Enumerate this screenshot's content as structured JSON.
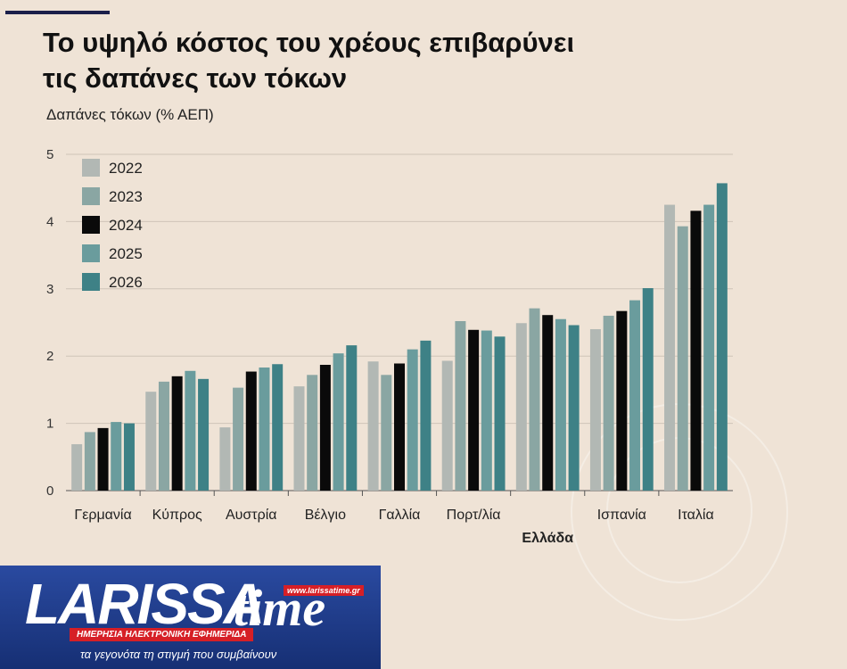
{
  "title_line1": "Το υψηλό κόστος του χρέους επιβαρύνει",
  "title_line2": "τις δαπάνες των τόκων",
  "colors": {
    "2022": "#b2b8b4",
    "2023": "#8aa6a3",
    "2024": "#0a0a0a",
    "2025": "#6a9c9d",
    "2026": "#3e8186",
    "background": "#efe3d6",
    "grid": "#cfc4b8"
  },
  "chart_data": {
    "type": "bar",
    "ylabel": "Δαπάνες τόκων (% ΑΕΠ)",
    "ylim": [
      0,
      5
    ],
    "yticks": [
      "0",
      "1",
      "2",
      "3",
      "4",
      "5"
    ],
    "legend_placement": "top-left",
    "categories": [
      "Γερμανία",
      "Κύπρος",
      "Αυστρία",
      "Βέλγιο",
      "Γαλλία",
      "Πορτ/λία",
      "Ελλάδα",
      "Ισπανία",
      "Ιταλία"
    ],
    "highlighted_category": "Ελλάδα",
    "series": [
      {
        "name": "2022",
        "values": [
          0.69,
          1.47,
          0.94,
          1.55,
          1.92,
          1.93,
          2.49,
          2.4,
          4.25
        ]
      },
      {
        "name": "2023",
        "values": [
          0.87,
          1.62,
          1.53,
          1.72,
          1.72,
          2.52,
          2.71,
          2.6,
          3.93
        ]
      },
      {
        "name": "2024",
        "values": [
          0.93,
          1.7,
          1.77,
          1.87,
          1.89,
          2.39,
          2.61,
          2.67,
          4.16
        ]
      },
      {
        "name": "2025",
        "values": [
          1.02,
          1.78,
          1.83,
          2.04,
          2.1,
          2.38,
          2.55,
          2.83,
          4.25
        ]
      },
      {
        "name": "2026",
        "values": [
          1.0,
          1.66,
          1.88,
          2.16,
          2.23,
          2.29,
          2.46,
          3.01,
          4.57
        ]
      }
    ]
  },
  "logo": {
    "word": "LARISSA",
    "time": "time",
    "url": "www.larissatime.gr",
    "strip": "ΗΜΕΡΗΣΙΑ ΗΛΕΚΤΡΟΝΙΚΗ ΕΦΗΜΕΡΙΔΑ",
    "tagline": "τα γεγονότα τη στιγμή που συμβαίνουν"
  }
}
